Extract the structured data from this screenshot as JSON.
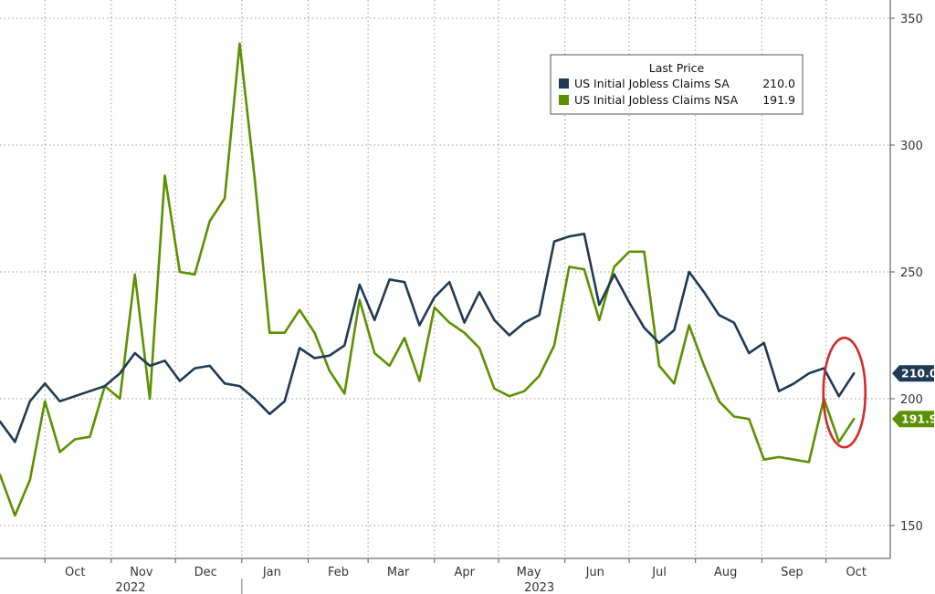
{
  "chart_data": {
    "type": "line",
    "legend_title": "Last Price",
    "legend_placement": "top-right",
    "grid": true,
    "ylim": [
      135,
      355
    ],
    "y_ticks": [
      150,
      200,
      250,
      300,
      350
    ],
    "x_range": [
      "2022-09-10",
      "2023-10-31"
    ],
    "month_ticks": [
      {
        "label": "Oct",
        "date": "2022-10-01"
      },
      {
        "label": "Nov",
        "date": "2022-11-01"
      },
      {
        "label": "Dec",
        "date": "2022-12-01"
      },
      {
        "label": "Jan",
        "date": "2023-01-01"
      },
      {
        "label": "Feb",
        "date": "2023-02-01"
      },
      {
        "label": "Mar",
        "date": "2023-03-01"
      },
      {
        "label": "Apr",
        "date": "2023-04-01"
      },
      {
        "label": "May",
        "date": "2023-05-01"
      },
      {
        "label": "Jun",
        "date": "2023-06-01"
      },
      {
        "label": "Jul",
        "date": "2023-07-01"
      },
      {
        "label": "Aug",
        "date": "2023-08-01"
      },
      {
        "label": "Sep",
        "date": "2023-09-01"
      },
      {
        "label": "Oct",
        "date": "2023-10-01"
      }
    ],
    "years": [
      {
        "label": "2022",
        "date": "2022-11-10"
      },
      {
        "label": "2023",
        "date": "2023-05-20"
      }
    ],
    "year_divider": "2023-01-01",
    "x": [
      "2022-09-10",
      "2022-09-17",
      "2022-09-24",
      "2022-10-01",
      "2022-10-08",
      "2022-10-15",
      "2022-10-22",
      "2022-10-29",
      "2022-11-05",
      "2022-11-12",
      "2022-11-19",
      "2022-11-26",
      "2022-12-03",
      "2022-12-10",
      "2022-12-17",
      "2022-12-24",
      "2022-12-31",
      "2023-01-07",
      "2023-01-14",
      "2023-01-21",
      "2023-01-28",
      "2023-02-04",
      "2023-02-11",
      "2023-02-18",
      "2023-02-25",
      "2023-03-04",
      "2023-03-11",
      "2023-03-18",
      "2023-03-25",
      "2023-04-01",
      "2023-04-08",
      "2023-04-15",
      "2023-04-22",
      "2023-04-29",
      "2023-05-06",
      "2023-05-13",
      "2023-05-20",
      "2023-05-27",
      "2023-06-03",
      "2023-06-10",
      "2023-06-17",
      "2023-06-24",
      "2023-07-01",
      "2023-07-08",
      "2023-07-15",
      "2023-07-22",
      "2023-07-29",
      "2023-08-05",
      "2023-08-12",
      "2023-08-19",
      "2023-08-26",
      "2023-09-02",
      "2023-09-09",
      "2023-09-16",
      "2023-09-23",
      "2023-09-30",
      "2023-10-07",
      "2023-10-14"
    ],
    "series": [
      {
        "name": "US Initial Jobless Claims SA",
        "last": "210.0",
        "color": "#1f3a55",
        "values": [
          191,
          183,
          199,
          206,
          199,
          201,
          203,
          205,
          210,
          218,
          213,
          215,
          207,
          212,
          213,
          206,
          205,
          200,
          194,
          199,
          220,
          216,
          217,
          221,
          245,
          231,
          247,
          246,
          229,
          240,
          246,
          230,
          242,
          231,
          225,
          230,
          233,
          262,
          264,
          265,
          237,
          249,
          238,
          228,
          222,
          227,
          250,
          242,
          233,
          230,
          218,
          222,
          203,
          206,
          210,
          212,
          201,
          210
        ]
      },
      {
        "name": "US Initial Jobless Claims NSA",
        "last": "191.9",
        "color": "#5b9100",
        "values": [
          170,
          154,
          168,
          199,
          179,
          184,
          185,
          205,
          200,
          249,
          200,
          288,
          250,
          249,
          270,
          279,
          340,
          287,
          226,
          226,
          235,
          226,
          211,
          202,
          239,
          218,
          213,
          224,
          207,
          236,
          230,
          226,
          220,
          204,
          201,
          203,
          209,
          221,
          252,
          251,
          231,
          252,
          258,
          258,
          213,
          206,
          229,
          213,
          199,
          193,
          192,
          176,
          177,
          176,
          175,
          200,
          183,
          192
        ]
      }
    ]
  }
}
